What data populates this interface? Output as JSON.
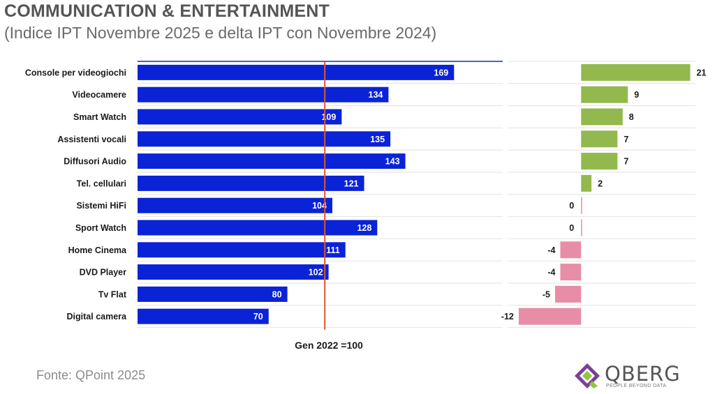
{
  "header": {
    "title": "COMMUNICATION & ENTERTAINMENT",
    "subtitle": "(Indice IPT Novembre 2025 e delta IPT con Novembre 2024)"
  },
  "footer": {
    "source": "Fonte: QPoint 2025"
  },
  "logo": {
    "name": "QBERG",
    "tagline": "PEOPLE BEYOND DATA"
  },
  "colors": {
    "index_bar": "#0a23d6",
    "baseline_line": "#e0562a",
    "delta_positive": "#93b94e",
    "delta_negative": "#e78da7",
    "grid": "#e2e2e2",
    "axis_top": "#15319c",
    "label_text": "#1a1a1a"
  },
  "chart_data": [
    {
      "type": "bar",
      "orientation": "horizontal",
      "categories": [
        "Console per videogiochi",
        "Videocamere",
        "Smart Watch",
        "Assistenti vocali",
        "Diffusori Audio",
        "Tel. cellulari",
        "Sistemi HiFi",
        "Sport Watch",
        "Home Cinema",
        "DVD Player",
        "Tv Flat",
        "Digital camera"
      ],
      "series": [
        {
          "values": [
            169,
            134,
            109,
            135,
            143,
            121,
            104,
            128,
            111,
            102,
            80,
            70
          ]
        }
      ],
      "reference_line": {
        "value": 100,
        "label": "Gen 2022 =100"
      },
      "xlim": [
        0,
        195
      ],
      "grid": "horizontal",
      "data_labels": true
    },
    {
      "type": "bar",
      "orientation": "horizontal",
      "categories": [
        "Console per videogiochi",
        "Videocamere",
        "Smart Watch",
        "Assistenti vocali",
        "Diffusori Audio",
        "Tel. cellulari",
        "Sistemi HiFi",
        "Sport Watch",
        "Home Cinema",
        "DVD Player",
        "Tv Flat",
        "Digital camera"
      ],
      "series": [
        {
          "values": [
            21,
            9,
            8,
            7,
            7,
            2,
            0,
            0,
            -4,
            -4,
            -5,
            -12
          ]
        }
      ],
      "xlim": [
        -14,
        22
      ],
      "grid": "horizontal",
      "data_labels": true
    }
  ]
}
